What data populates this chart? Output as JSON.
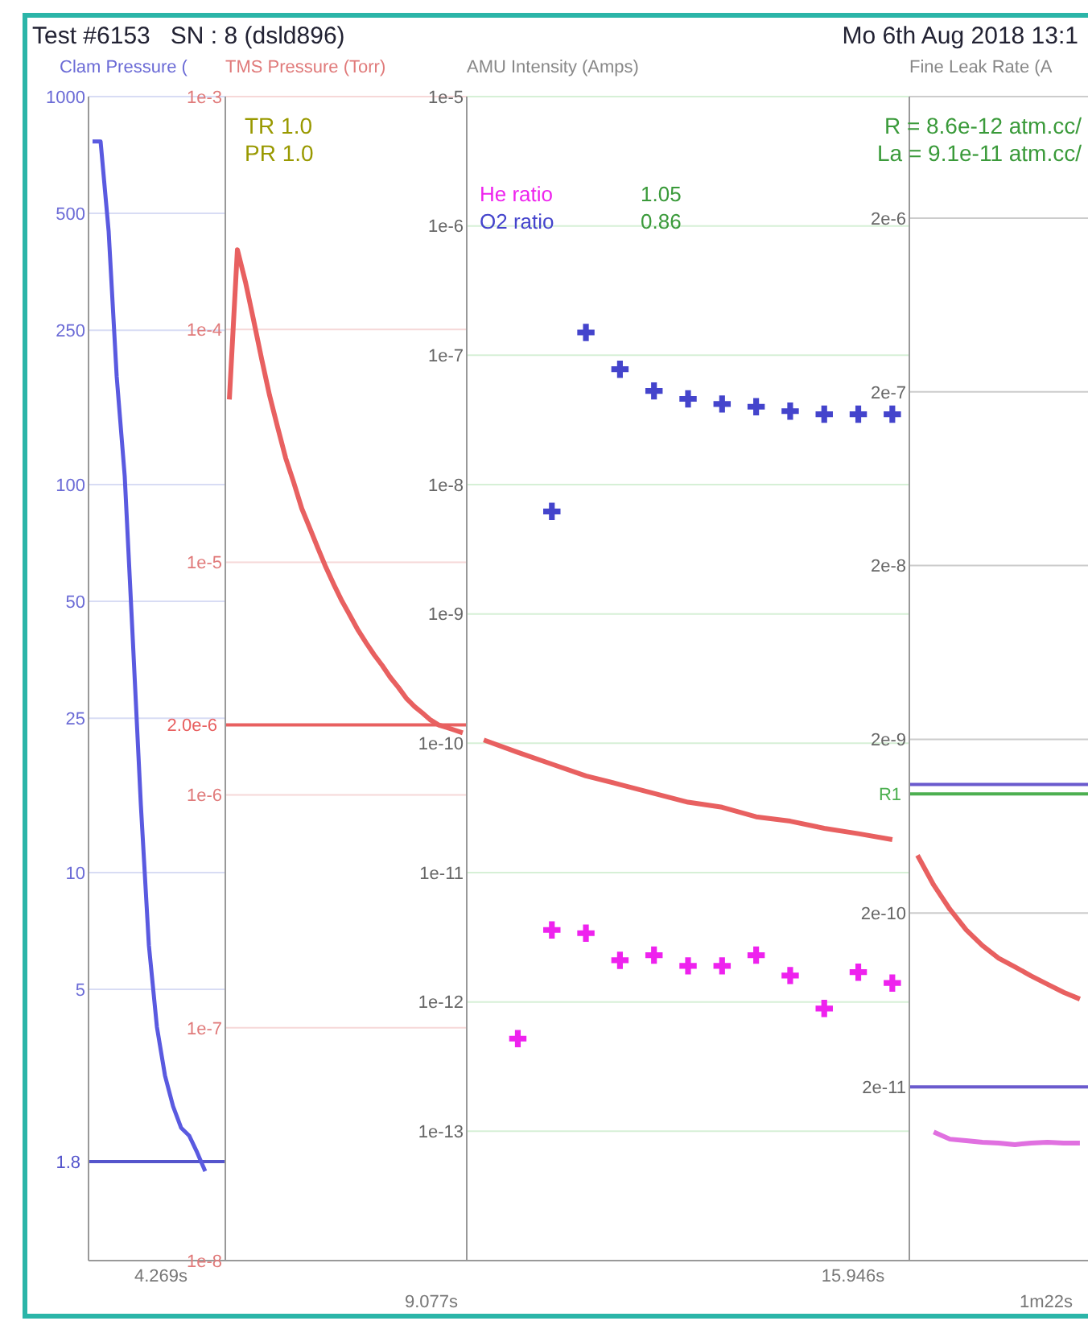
{
  "chart_data": [
    {
      "type": "line",
      "title": "Test #6153   SN : 8 (dsld896)",
      "ylabel": "Clam Pressure (",
      "log": "y",
      "grid": "y",
      "marker": "none",
      "ylim": [
        1,
        1000
      ],
      "yticks": [
        1000,
        500,
        250,
        100,
        50,
        25,
        10,
        5
      ],
      "categories": [
        null,
        null,
        null,
        null,
        null,
        null,
        null,
        null,
        null,
        null,
        null,
        null,
        null,
        null,
        null,
        null,
        null
      ],
      "annotations": [
        "4.269s"
      ],
      "ref_lines": [
        {
          "axis": "y",
          "value": 1.8,
          "label": "1.8",
          "color": "#5555cc"
        }
      ],
      "series": [
        {
          "color": "#5a5ae0",
          "values": [
            766,
            766,
            450,
            190,
            105,
            40,
            15,
            6.5,
            4,
            3,
            2.5,
            2.2,
            2.1,
            1.9,
            1.7,
            null,
            null
          ]
        }
      ]
    },
    {
      "type": "line",
      "ylabel": "TMS Pressure (Torr)",
      "log": "y",
      "grid": "y",
      "marker": "none",
      "ylim": [
        1e-08,
        0.001
      ],
      "yticks": [
        {
          "value": 0.001,
          "label": "1e-3"
        },
        {
          "value": 0.0001,
          "label": "1e-4"
        },
        {
          "value": 1e-05,
          "label": "1e-5"
        },
        {
          "value": 1e-06,
          "label": "1e-6"
        },
        {
          "value": 1e-07,
          "label": "1e-7"
        },
        {
          "value": 1e-08,
          "label": "1e-8"
        }
      ],
      "categories": [
        null,
        null,
        null,
        null,
        null,
        null,
        null,
        null,
        null,
        null,
        null,
        null,
        null,
        null,
        null,
        null,
        null,
        null,
        null,
        null,
        null,
        null,
        null,
        null,
        null,
        null,
        null,
        null,
        null,
        null
      ],
      "ref_lines": [
        {
          "axis": "y",
          "value": 2e-06,
          "label": "2.0e-6",
          "color": "#e86060"
        }
      ],
      "annotations": [
        "9.077s",
        "TR 1.0",
        "PR 1.0"
      ],
      "series": [
        {
          "color": "#e86060",
          "values": [
            5e-05,
            0.00022,
            0.00016,
            0.00011,
            7.5e-05,
            5.2e-05,
            3.8e-05,
            2.8e-05,
            2.2e-05,
            1.7e-05,
            1.4e-05,
            1.15e-05,
            9.5e-06,
            8e-06,
            6.8e-06,
            5.9e-06,
            5.1e-06,
            4.5e-06,
            4e-06,
            3.6e-06,
            3.2e-06,
            2.9e-06,
            2.6e-06,
            2.4e-06,
            2.25e-06,
            2.1e-06,
            2e-06,
            1.95e-06,
            1.9e-06,
            1.85e-06
          ]
        }
      ]
    },
    {
      "type": "scatter",
      "ylabel": "AMU Intensity (Amps)",
      "log": "y",
      "grid": "y",
      "legend": "top left",
      "marker": "cross",
      "ylim": [
        1e-14,
        1e-05
      ],
      "yticks": [
        {
          "value": 1e-05,
          "label": "1e-5"
        },
        {
          "value": 1e-06,
          "label": "1e-6"
        },
        {
          "value": 1e-07,
          "label": "1e-7"
        },
        {
          "value": 1e-08,
          "label": "1e-8"
        },
        {
          "value": 1e-09,
          "label": "1e-9"
        },
        {
          "value": 1e-10,
          "label": "1e-10"
        },
        {
          "value": 1e-11,
          "label": "1e-11"
        },
        {
          "value": 1e-12,
          "label": "1e-12"
        },
        {
          "value": 1e-13,
          "label": "1e-13"
        }
      ],
      "categories": [
        null,
        null,
        null,
        null,
        null,
        null,
        null,
        null,
        null,
        null,
        null,
        null,
        null
      ],
      "annotations": [
        "15.946s",
        "1.05",
        "0.86"
      ],
      "series": [
        {
          "name": "He ratio",
          "color": "#ee22ee",
          "values": [
            null,
            5.2e-13,
            3.6e-12,
            3.4e-12,
            2.1e-12,
            2.3e-12,
            1.9e-12,
            1.9e-12,
            2.3e-12,
            1.6e-12,
            8.9e-13,
            1.7e-12,
            1.4e-12
          ]
        },
        {
          "name": "O2 ratio",
          "color": "#4444cc",
          "values": [
            null,
            null,
            6.2e-09,
            1.5e-07,
            7.8e-08,
            5.3e-08,
            4.6e-08,
            4.2e-08,
            4e-08,
            3.7e-08,
            3.5e-08,
            3.5e-08,
            3.5e-08
          ]
        },
        {
          "type": "line",
          "marker": "none",
          "color": "#e86060",
          "values": [
            1.06e-10,
            8.5e-11,
            6.9e-11,
            5.6e-11,
            4.8e-11,
            4.1e-11,
            3.5e-11,
            3.2e-11,
            2.7e-11,
            2.5e-11,
            2.2e-11,
            2e-11,
            1.8e-11
          ]
        }
      ]
    },
    {
      "type": "line",
      "title": "Mo 6th Aug 2018 13:1",
      "ylabel": "Fine Leak Rate (A",
      "log": "y",
      "grid": "y",
      "marker": "none",
      "ylim": [
        2e-12,
        1e-05
      ],
      "yticks": [
        {
          "value": 2e-06,
          "label": "2e-6"
        },
        {
          "value": 2e-07,
          "label": "2e-7"
        },
        {
          "value": 2e-08,
          "label": "2e-8"
        },
        {
          "value": 2e-09,
          "label": "2e-9"
        },
        {
          "value": 2e-10,
          "label": "2e-10"
        },
        {
          "value": 2e-11,
          "label": "2e-11"
        }
      ],
      "categories": [
        null,
        null,
        null,
        null,
        null,
        null,
        null,
        null,
        null,
        null,
        null
      ],
      "ref_lines": [
        {
          "axis": "y",
          "value": 1.1e-09,
          "color": "#6a5acd"
        },
        {
          "axis": "y",
          "value": 9.7e-10,
          "label": "R1",
          "color": "#4caf50"
        },
        {
          "axis": "y",
          "value": 2e-11,
          "color": "#6a5acd"
        }
      ],
      "annotations": [
        "1m22s",
        "R = 8.6e-12 atm.cc/",
        "La = 9.1e-11 atm.cc/"
      ],
      "series": [
        {
          "color": "#e86060",
          "values": [
            4.3e-10,
            2.9e-10,
            2.1e-10,
            1.6e-10,
            1.3e-10,
            1.1e-10,
            9.8e-11,
            8.7e-11,
            7.8e-11,
            7e-11,
            6.4e-11
          ]
        },
        {
          "color": "#e070e0",
          "values": [
            null,
            1.1e-11,
            1e-11,
            9.8e-12,
            9.6e-12,
            9.5e-12,
            9.3e-12,
            9.5e-12,
            9.6e-12,
            9.5e-12,
            9.5e-12
          ]
        }
      ]
    }
  ]
}
